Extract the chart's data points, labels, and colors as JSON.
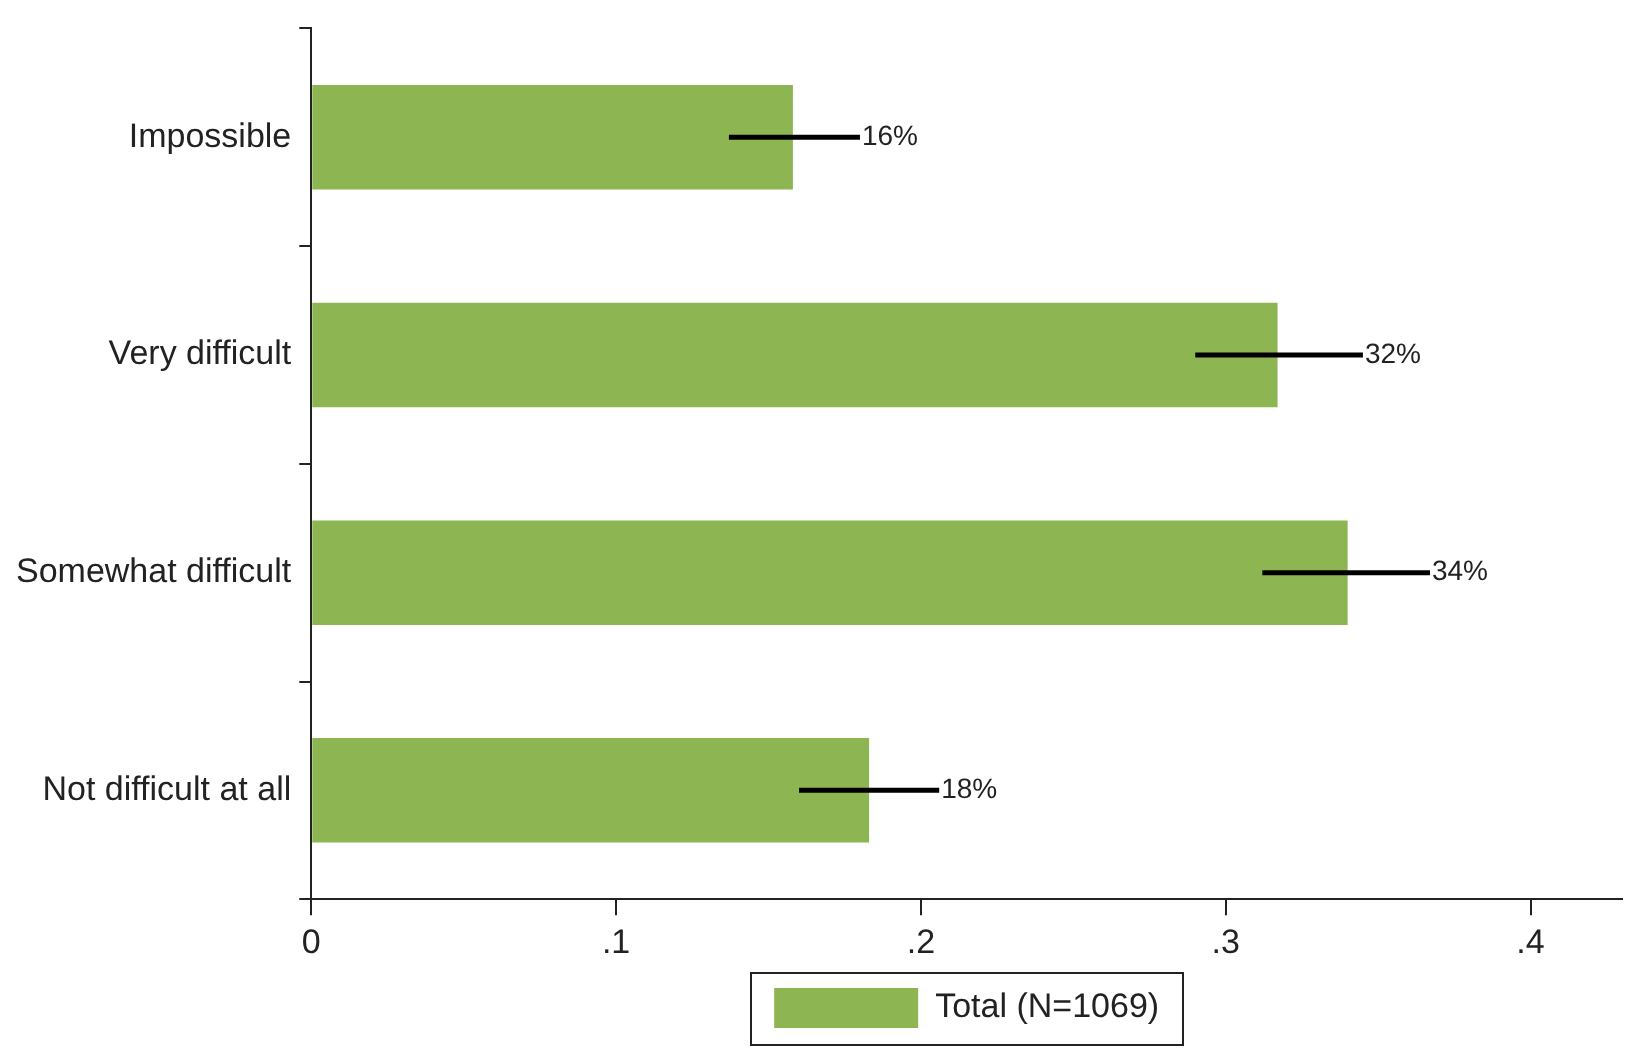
{
  "chart_data": {
    "type": "bar",
    "orientation": "horizontal",
    "categories": [
      "Impossible",
      "Very difficult",
      "Somewhat difficult",
      "Not difficult at all"
    ],
    "series": [
      {
        "name": "Total (N=1069)",
        "color": "#8db653",
        "values": [
          0.158,
          0.317,
          0.34,
          0.183
        ],
        "errors": [
          [
            0.137,
            0.18
          ],
          [
            0.29,
            0.345
          ],
          [
            0.312,
            0.367
          ],
          [
            0.16,
            0.206
          ]
        ],
        "value_labels": [
          "16%",
          "32%",
          "34%",
          "18%"
        ]
      }
    ],
    "xlim": [
      0,
      0.43
    ],
    "xticks": [
      0,
      {
        "value": 0.1,
        "label": ".1"
      },
      {
        "value": 0.2,
        "label": ".2"
      },
      {
        "value": 0.3,
        "label": ".3"
      },
      {
        "value": 0.4,
        "label": ".4"
      }
    ],
    "grid": false,
    "legend": "bottom"
  }
}
